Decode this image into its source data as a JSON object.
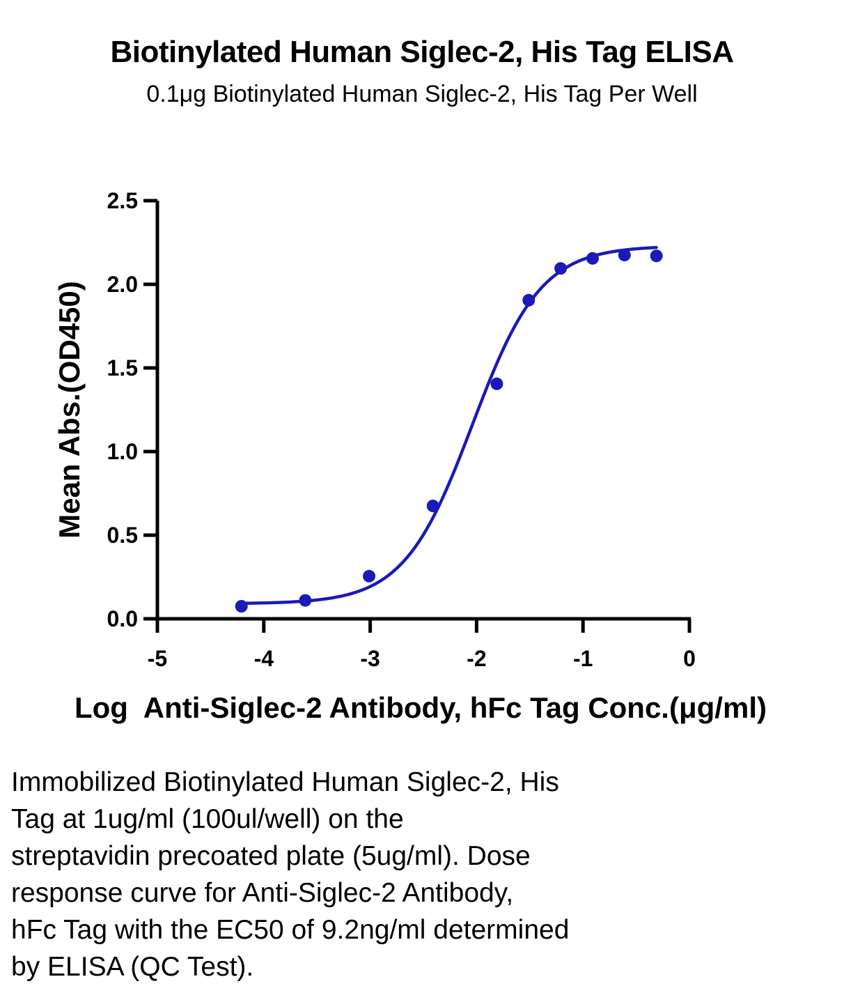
{
  "chart_data": {
    "type": "scatter",
    "title": "Biotinylated Human Siglec-2, His Tag ELISA",
    "subtitle": "0.1μg Biotinylated Human Siglec-2, His Tag Per Well",
    "xlabel": "Log  Anti-Siglec-2 Antibody, hFc Tag Conc.(μg/ml)",
    "ylabel": "Mean Abs.(OD450)",
    "xlim": [
      -5,
      0
    ],
    "ylim": [
      0,
      2.5
    ],
    "x_ticks": [
      -5,
      -4,
      -3,
      -2,
      -1,
      0
    ],
    "x_tick_labels": [
      "-5",
      "-4",
      "-3",
      "-2",
      "-1",
      "0"
    ],
    "y_ticks": [
      0,
      0.5,
      1.0,
      1.5,
      2.0,
      2.5
    ],
    "y_tick_labels": [
      "0.0",
      "0.5",
      "1.0",
      "1.5",
      "2.0",
      "2.5"
    ],
    "grid": false,
    "series": [
      {
        "color": "#1a1ab8",
        "x": [
          -4.21,
          -3.61,
          -3.01,
          -2.41,
          -1.81,
          -1.51,
          -1.21,
          -0.91,
          -0.61,
          -0.31
        ],
        "y": [
          0.075,
          0.11,
          0.255,
          0.675,
          1.405,
          1.905,
          2.095,
          2.155,
          2.175,
          2.17
        ],
        "fit": {
          "model": "4PL",
          "bottom": 0.09,
          "top": 2.23,
          "logEC50": -2.04,
          "hill": 1.35,
          "x_range": [
            -4.21,
            -0.31
          ]
        }
      }
    ]
  },
  "caption_lines": [
    "Immobilized Biotinylated Human Siglec-2, His",
    "Tag at 1ug/ml (100ul/well) on the",
    "streptavidin precoated plate (5ug/ml). Dose",
    "response curve for Anti-Siglec-2 Antibody,",
    "hFc Tag with the EC50 of 9.2ng/ml determined",
    "by ELISA (QC Test)."
  ]
}
